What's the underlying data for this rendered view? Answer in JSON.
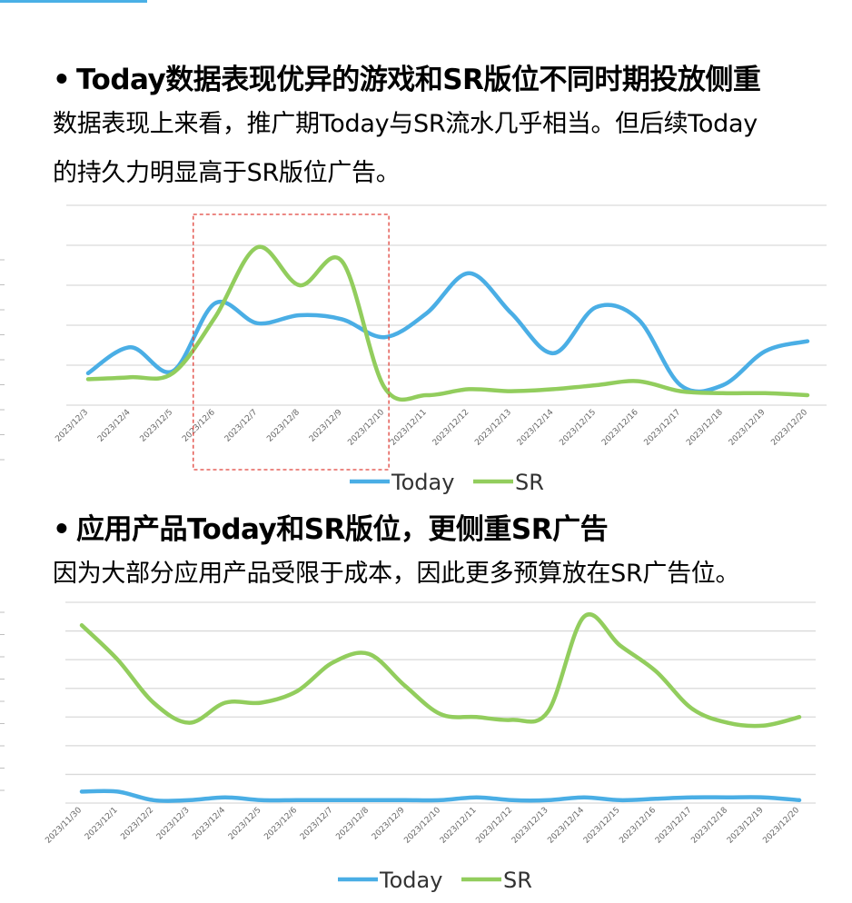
{
  "section1": {
    "heading": "Today数据表现优异的游戏和SR版位不同时期投放侧重",
    "paragraph_line1": "数据表现上来看，推广期Today与SR流水几乎相当。但后续Today",
    "paragraph_line2": "的持久力明显高于SR版位广告。"
  },
  "section2": {
    "heading": "应用产品Today和SR版位，更侧重SR广告",
    "paragraph": "因为大部分应用产品受限于成本，因此更多预算放在SR广告位。"
  },
  "colors": {
    "today": "#4aaee5",
    "sr": "#92cd5d",
    "grid": "#d9d9d9",
    "highlight": "#e0423a"
  },
  "chart_data": [
    {
      "type": "line",
      "title": "",
      "xlabel": "",
      "ylabel": "",
      "grid": true,
      "legend": "bottom",
      "ylim": [
        0,
        100
      ],
      "categories": [
        "2023/12/3",
        "2023/12/4",
        "2023/12/5",
        "2023/12/6",
        "2023/12/7",
        "2023/12/8",
        "2023/12/9",
        "2023/12/10",
        "2023/12/11",
        "2023/12/12",
        "2023/12/13",
        "2023/12/14",
        "2023/12/15",
        "2023/12/16",
        "2023/12/17",
        "2023/12/18",
        "2023/12/19",
        "2023/12/20"
      ],
      "series": [
        {
          "name": "Today",
          "values": [
            16,
            29,
            17,
            51,
            41,
            45,
            43,
            34,
            46,
            66,
            46,
            26,
            49,
            43,
            10,
            10,
            27,
            32
          ]
        },
        {
          "name": "SR",
          "values": [
            13,
            14,
            16,
            44,
            79,
            60,
            72,
            9,
            5,
            8,
            7,
            8,
            10,
            12,
            7,
            6,
            6,
            5
          ]
        }
      ],
      "highlight_categories": [
        "2023/12/6",
        "2023/12/10"
      ]
    },
    {
      "type": "line",
      "title": "",
      "xlabel": "",
      "ylabel": "",
      "grid": true,
      "legend": "bottom",
      "ylim": [
        0,
        70
      ],
      "categories": [
        "2023/11/30",
        "2023/12/1",
        "2023/12/2",
        "2023/12/3",
        "2023/12/4",
        "2023/12/5",
        "2023/12/6",
        "2023/12/7",
        "2023/12/8",
        "2023/12/9",
        "2023/12/10",
        "2023/12/11",
        "2023/12/12",
        "2023/12/13",
        "2023/12/14",
        "2023/12/15",
        "2023/12/16",
        "2023/12/17",
        "2023/12/18",
        "2023/12/19",
        "2023/12/20"
      ],
      "series": [
        {
          "name": "Today",
          "values": [
            4,
            4,
            1,
            1,
            2,
            1,
            1,
            1,
            1,
            1,
            1,
            2,
            1,
            1,
            2,
            1,
            1.5,
            2,
            2,
            2,
            1
          ]
        },
        {
          "name": "SR",
          "values": [
            62,
            50,
            35,
            28,
            35,
            35,
            39,
            49,
            52,
            41,
            31,
            30,
            29,
            32,
            65,
            55,
            46,
            33,
            28,
            27,
            30
          ]
        }
      ]
    }
  ]
}
